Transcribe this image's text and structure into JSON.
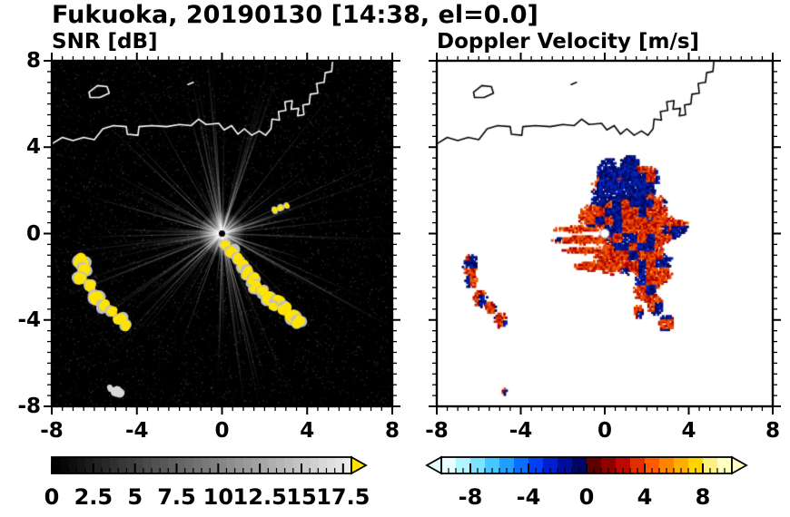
{
  "figure": {
    "title": "Fukuoka, 20190130 [14:38, el=0.0]"
  },
  "chart_data": [
    {
      "type": "heatmap",
      "panel": "snr",
      "title": "SNR [dB]",
      "xlim": [
        -8,
        8
      ],
      "ylim": [
        -8,
        8
      ],
      "xticks": [
        -8,
        -4,
        0,
        4,
        8
      ],
      "yticks": [
        -8,
        -4,
        0,
        4,
        8
      ],
      "minor_tick_step": 0.5,
      "background_color": "#000000",
      "radar_center": [
        0,
        0
      ],
      "beam_color": "#ffffff",
      "echo_color": "#ffe400",
      "echo_fringe_color": "#c0c0c0",
      "echo_blobs": [
        [
          0.15,
          -0.55,
          0.22
        ],
        [
          0.45,
          -0.85,
          0.28
        ],
        [
          0.75,
          -1.15,
          0.24
        ],
        [
          0.95,
          -1.5,
          0.28
        ],
        [
          1.2,
          -1.8,
          0.28
        ],
        [
          1.5,
          -2.05,
          0.24
        ],
        [
          1.6,
          -2.45,
          0.28
        ],
        [
          1.9,
          -2.7,
          0.24
        ],
        [
          2.2,
          -3.0,
          0.3
        ],
        [
          2.6,
          -3.2,
          0.33
        ],
        [
          2.95,
          -3.5,
          0.3
        ],
        [
          3.3,
          -3.85,
          0.33
        ],
        [
          3.6,
          -4.1,
          0.28
        ],
        [
          1.35,
          -2.25,
          0.18
        ],
        [
          2.4,
          -3.35,
          0.2
        ],
        [
          -6.6,
          -1.25,
          0.33
        ],
        [
          -6.45,
          -1.7,
          0.28
        ],
        [
          -6.7,
          -2.1,
          0.28
        ],
        [
          -6.2,
          -2.4,
          0.24
        ],
        [
          -5.9,
          -3.05,
          0.33
        ],
        [
          -5.55,
          -3.35,
          0.28
        ],
        [
          -5.15,
          -3.6,
          0.24
        ],
        [
          -4.8,
          -3.95,
          0.28
        ],
        [
          -4.5,
          -4.25,
          0.24
        ],
        [
          2.45,
          1.1,
          0.14
        ],
        [
          2.75,
          1.2,
          0.13
        ],
        [
          3.05,
          1.3,
          0.12
        ]
      ],
      "weak_blobs": [
        [
          -4.9,
          -7.35,
          0.28
        ],
        [
          -5.2,
          -7.2,
          0.16
        ]
      ],
      "colorbar": {
        "range": [
          0,
          18
        ],
        "steps": 36,
        "ramp": [
          "#000000",
          "#ebebeb"
        ],
        "minor_tick": 0.5,
        "label_positions": [
          0,
          2.5,
          5,
          7.5,
          10,
          12.5,
          15,
          17.5
        ],
        "label_values": [
          "0",
          "2.5",
          "5",
          "7.5",
          "10",
          "12.5",
          "15",
          "17.5"
        ],
        "over_arrow_color": "#ffe400"
      }
    },
    {
      "type": "heatmap",
      "panel": "doppler_velocity",
      "title": "Doppler Velocity [m/s]",
      "xlim": [
        -8,
        8
      ],
      "ylim": [
        -8,
        8
      ],
      "xticks": [
        -8,
        -4,
        0,
        4,
        8
      ],
      "yticks": [
        -8,
        -4,
        0,
        4,
        8
      ],
      "minor_tick_step": 0.5,
      "background_color": "#ffffff",
      "radar_center": [
        0,
        0
      ],
      "blue_shades": [
        "#00085a",
        "#001489",
        "#0822b4"
      ],
      "red_shades": [
        "#a80000",
        "#cc2200",
        "#e84400",
        "#f26000"
      ],
      "lobes": [
        [
          0.9,
          1.8,
          1.5,
          1.3,
          0.82
        ],
        [
          1.8,
          1.0,
          1.2,
          0.9,
          0.6
        ],
        [
          0.5,
          0.7,
          0.9,
          0.8,
          0.55
        ],
        [
          1.4,
          -0.2,
          1.5,
          0.9,
          0.38
        ],
        [
          0.7,
          -1.2,
          1.2,
          0.7,
          0.22
        ],
        [
          2.3,
          -1.6,
          0.9,
          0.9,
          0.3
        ],
        [
          2.8,
          0.2,
          0.8,
          0.6,
          0.45
        ],
        [
          0.2,
          2.7,
          0.5,
          0.8,
          0.9
        ],
        [
          1.2,
          3.0,
          0.5,
          0.6,
          0.88
        ],
        [
          2.0,
          2.5,
          0.6,
          0.6,
          0.8
        ],
        [
          -0.5,
          0.8,
          0.7,
          0.5,
          0.45
        ],
        [
          -1.1,
          -0.3,
          1.4,
          0.2,
          0.06
        ],
        [
          -0.9,
          -0.8,
          1.1,
          0.16,
          0.06
        ],
        [
          -1.3,
          0.2,
          1.1,
          0.14,
          0.1
        ],
        [
          -0.5,
          -1.5,
          0.9,
          0.22,
          0.12
        ],
        [
          1.9,
          -2.6,
          0.5,
          0.55,
          0.3
        ],
        [
          2.4,
          -3.3,
          0.4,
          0.45,
          0.35
        ],
        [
          2.95,
          -4.15,
          0.35,
          0.4,
          0.3
        ],
        [
          1.6,
          -3.6,
          0.25,
          0.3,
          0.4
        ],
        [
          3.5,
          0.3,
          0.45,
          0.35,
          0.35
        ],
        [
          -6.4,
          -1.5,
          0.35,
          0.5,
          0.5
        ],
        [
          -6.35,
          -2.2,
          0.28,
          0.35,
          0.45
        ],
        [
          -5.9,
          -3.0,
          0.33,
          0.4,
          0.5
        ],
        [
          -5.45,
          -3.45,
          0.28,
          0.3,
          0.4
        ],
        [
          -4.95,
          -4.0,
          0.28,
          0.35,
          0.45
        ],
        [
          -4.8,
          -7.3,
          0.14,
          0.16,
          0.15
        ]
      ],
      "colorbar": {
        "range": [
          -10,
          10
        ],
        "segments": [
          "#e6ffff",
          "#b3f5ff",
          "#7fe3ff",
          "#45c8ff",
          "#1fa0ff",
          "#0a6eff",
          "#0040f5",
          "#001fd0",
          "#000d9e",
          "#000566",
          "#5e0000",
          "#8f0000",
          "#bc0800",
          "#e32f00",
          "#ff5a00",
          "#ff8400",
          "#ffae00",
          "#ffd500",
          "#fef080",
          "#ffffc0"
        ],
        "minor_tick": 0.5,
        "label_positions": [
          -8,
          -4,
          0,
          4,
          8
        ],
        "label_values": [
          "-8",
          "-4",
          "0",
          "4",
          "8"
        ],
        "under_arrow_color": "#e6ffff",
        "over_arrow_color": "#ffffc8"
      }
    }
  ],
  "coastline": {
    "color_on_dark": "#ffffff",
    "color_on_light": "#000000",
    "paths": [
      [
        [
          -8.0,
          4.15
        ],
        [
          -7.5,
          4.45
        ],
        [
          -7.0,
          4.3
        ],
        [
          -6.5,
          4.45
        ],
        [
          -6.0,
          4.35
        ],
        [
          -5.6,
          4.85
        ],
        [
          -5.1,
          5.0
        ],
        [
          -4.5,
          4.95
        ],
        [
          -4.45,
          4.6
        ],
        [
          -3.95,
          4.55
        ],
        [
          -3.9,
          4.95
        ],
        [
          -3.3,
          5.0
        ],
        [
          -2.6,
          4.95
        ],
        [
          -2.0,
          5.05
        ],
        [
          -1.45,
          5.0
        ],
        [
          -1.1,
          5.3
        ],
        [
          -0.75,
          5.05
        ],
        [
          -0.15,
          5.1
        ],
        [
          0.1,
          4.8
        ],
        [
          0.45,
          5.0
        ],
        [
          0.75,
          4.6
        ],
        [
          1.05,
          4.85
        ],
        [
          1.4,
          4.55
        ],
        [
          1.75,
          4.75
        ],
        [
          2.05,
          4.55
        ],
        [
          2.3,
          4.85
        ],
        [
          2.35,
          5.3
        ],
        [
          2.7,
          5.25
        ],
        [
          2.65,
          5.65
        ],
        [
          3.0,
          5.7
        ],
        [
          2.95,
          6.1
        ],
        [
          3.3,
          6.15
        ],
        [
          3.25,
          5.75
        ],
        [
          3.6,
          5.8
        ],
        [
          3.55,
          5.45
        ],
        [
          3.85,
          5.5
        ],
        [
          3.8,
          5.95
        ],
        [
          4.1,
          6.0
        ],
        [
          4.15,
          6.45
        ],
        [
          4.5,
          6.5
        ],
        [
          4.45,
          6.95
        ],
        [
          4.8,
          7.0
        ],
        [
          4.85,
          7.45
        ],
        [
          5.15,
          7.5
        ],
        [
          5.2,
          8.0
        ]
      ],
      [
        [
          -6.25,
          6.55
        ],
        [
          -5.85,
          6.85
        ],
        [
          -5.4,
          6.8
        ],
        [
          -5.3,
          6.5
        ],
        [
          -5.75,
          6.3
        ],
        [
          -6.2,
          6.3
        ],
        [
          -6.25,
          6.55
        ]
      ],
      [
        [
          -1.6,
          6.9
        ],
        [
          -1.35,
          7.0
        ]
      ]
    ]
  }
}
